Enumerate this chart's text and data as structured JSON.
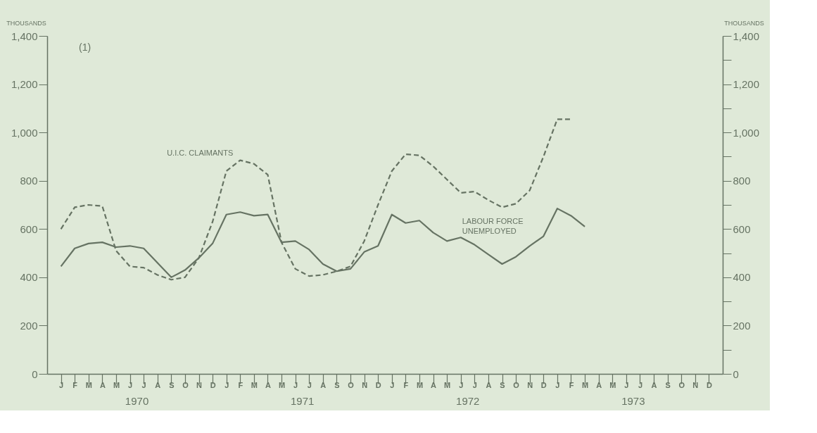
{
  "chart_data": {
    "type": "line",
    "ylabel": "THOUSANDS",
    "y2label": "THOUSANDS",
    "annotations": [
      "(1)",
      "1970",
      "1971",
      "1972",
      "1973"
    ],
    "categories": [
      "J",
      "F",
      "M",
      "A",
      "M",
      "J",
      "J",
      "A",
      "S",
      "O",
      "N",
      "D",
      "J",
      "F",
      "M",
      "A",
      "M",
      "J",
      "J",
      "A",
      "S",
      "O",
      "N",
      "D",
      "J",
      "F",
      "M",
      "A",
      "M",
      "J",
      "J",
      "A",
      "S",
      "O",
      "N",
      "D",
      "J",
      "F",
      "M",
      "A",
      "M",
      "J",
      "J",
      "A",
      "S",
      "O",
      "N",
      "D"
    ],
    "ylim": [
      0,
      1400
    ],
    "yticks": [
      0,
      {
        "value": 100,
        "label": null
      },
      200,
      {
        "value": 300,
        "label": null
      },
      400,
      {
        "value": 500,
        "label": null
      },
      600,
      {
        "value": 700,
        "label": null
      },
      800,
      {
        "value": 900,
        "label": null
      },
      {
        "value": 1000,
        "label": "1,000"
      },
      {
        "value": 1100,
        "label": null
      },
      {
        "value": 1200,
        "label": "1,200"
      },
      {
        "value": 1300,
        "label": null
      },
      {
        "value": 1400,
        "label": "1,400"
      }
    ],
    "y2lim": [
      0,
      1400
    ],
    "y2ticks": [
      0,
      {
        "value": 100,
        "label": null
      },
      200,
      {
        "value": 300,
        "label": null
      },
      400,
      {
        "value": 500,
        "label": null
      },
      600,
      {
        "value": 700,
        "label": null
      },
      800,
      {
        "value": 900,
        "label": null
      },
      {
        "value": 1000,
        "label": "1,000"
      },
      {
        "value": 1100,
        "label": null
      },
      {
        "value": 1200,
        "label": "1,200"
      },
      {
        "value": 1300,
        "label": null
      },
      {
        "value": 1400,
        "label": "1,400"
      }
    ],
    "grid": false,
    "marker": "none",
    "series": [
      {
        "name": "U.I.C. CLAIMANTS",
        "color": "#667363",
        "line_style": "dashed",
        "values": [
          600,
          690,
          700,
          695,
          510,
          445,
          440,
          410,
          390,
          400,
          480,
          630,
          840,
          885,
          870,
          825,
          545,
          435,
          405,
          410,
          425,
          445,
          550,
          700,
          840,
          910,
          905,
          860,
          805,
          750,
          755,
          720,
          690,
          705,
          760,
          900,
          1055,
          1055,
          null,
          null,
          null,
          null,
          null,
          null,
          null,
          null,
          null,
          null
        ]
      },
      {
        "name": "LABOUR FORCE UNEMPLOYED",
        "color": "#667363",
        "line_style": "solid",
        "values": [
          445,
          520,
          540,
          545,
          525,
          530,
          520,
          460,
          400,
          430,
          480,
          540,
          660,
          670,
          655,
          660,
          545,
          550,
          515,
          455,
          425,
          435,
          505,
          530,
          660,
          625,
          635,
          585,
          550,
          565,
          535,
          495,
          455,
          485,
          530,
          570,
          685,
          655,
          610,
          null,
          null,
          null,
          null,
          null,
          null,
          null,
          null,
          null
        ]
      }
    ]
  }
}
